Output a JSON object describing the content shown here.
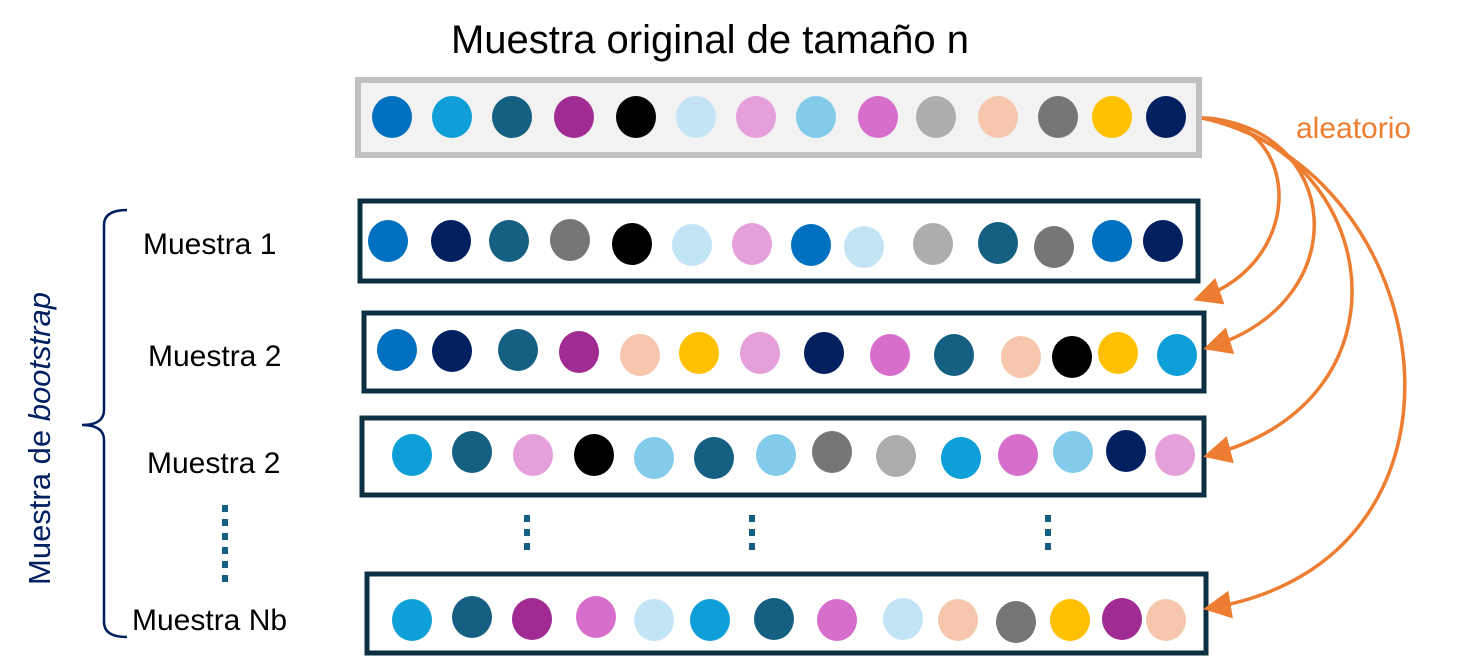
{
  "title": "Muestra original de tamaño n",
  "random_label": "aleatorio",
  "group_label": {
    "prefix": "Muestra de ",
    "emphasis": "bootstrap"
  },
  "colors": {
    "accent": "#ed7d31",
    "box_border": "#0d2f42",
    "original_border": "#c0c0c0",
    "original_fill": "#f2f2f2",
    "group_text": "#002060",
    "dots": "#156082"
  },
  "palette": {
    "A": "#0070c0",
    "B": "#0e9fd8",
    "C": "#156082",
    "D": "#a02b93",
    "E": "#000000",
    "F": "#c2e4f5",
    "G": "#e5a0dc",
    "H": "#83cbeb",
    "I": "#d86ecc",
    "J": "#adadad",
    "K": "#f6c7ad",
    "L": "#767676",
    "M": "#ffc000",
    "N": "#002060"
  },
  "original_sample": [
    "A",
    "B",
    "C",
    "D",
    "E",
    "F",
    "G",
    "H",
    "I",
    "J",
    "K",
    "L",
    "M",
    "N"
  ],
  "samples": [
    {
      "label": "Muestra 1",
      "items": [
        "A",
        "N",
        "C",
        "L",
        "E",
        "F",
        "G",
        "A",
        "F",
        "J",
        "C",
        "L",
        "A",
        "N"
      ]
    },
    {
      "label": "Muestra 2",
      "items": [
        "A",
        "N",
        "C",
        "D",
        "K",
        "M",
        "G",
        "N",
        "I",
        "C",
        "K",
        "E",
        "M",
        "B"
      ]
    },
    {
      "label": "Muestra 2",
      "items": [
        "B",
        "C",
        "G",
        "E",
        "H",
        "C",
        "H",
        "L",
        "J",
        "B",
        "I",
        "H",
        "N",
        "G"
      ]
    },
    {
      "label": "Muestra Nb",
      "items": [
        "B",
        "C",
        "D",
        "I",
        "F",
        "B",
        "C",
        "I",
        "F",
        "K",
        "L",
        "M",
        "D",
        "K"
      ]
    }
  ]
}
